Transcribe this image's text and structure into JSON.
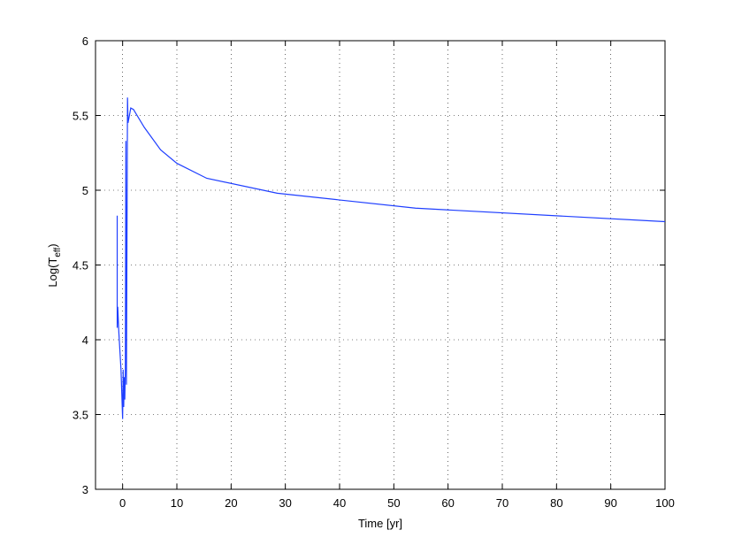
{
  "chart_data": {
    "type": "line",
    "xlabel": "Time [yr]",
    "ylabel": [
      "Log(T",
      "eff",
      ")"
    ],
    "x": [
      -1,
      -1,
      -0.9,
      -0.7,
      -0.3,
      0,
      0.1,
      0.2,
      0.3,
      0.4,
      0.5,
      0.6,
      0.7,
      0.9,
      1,
      1.5,
      2,
      4,
      7,
      10,
      15.5,
      28.5,
      54,
      100
    ],
    "series": [
      {
        "color": "#1f3fff",
        "values": [
          4.83,
          4.08,
          4.22,
          4.05,
          3.8,
          3.47,
          3.8,
          3.55,
          3.75,
          3.6,
          3.8,
          5.33,
          3.7,
          5.62,
          5.45,
          5.55,
          5.54,
          5.42,
          5.27,
          5.18,
          5.08,
          4.98,
          4.88,
          4.79
        ]
      }
    ],
    "xlim": [
      -5,
      100
    ],
    "xticks": [
      0,
      10,
      20,
      30,
      40,
      50,
      60,
      70,
      80,
      90,
      100
    ],
    "ylim": [
      3,
      6
    ],
    "yticks": [
      3,
      3.5,
      4,
      4.5,
      5,
      5.5,
      6
    ],
    "grid": true
  }
}
